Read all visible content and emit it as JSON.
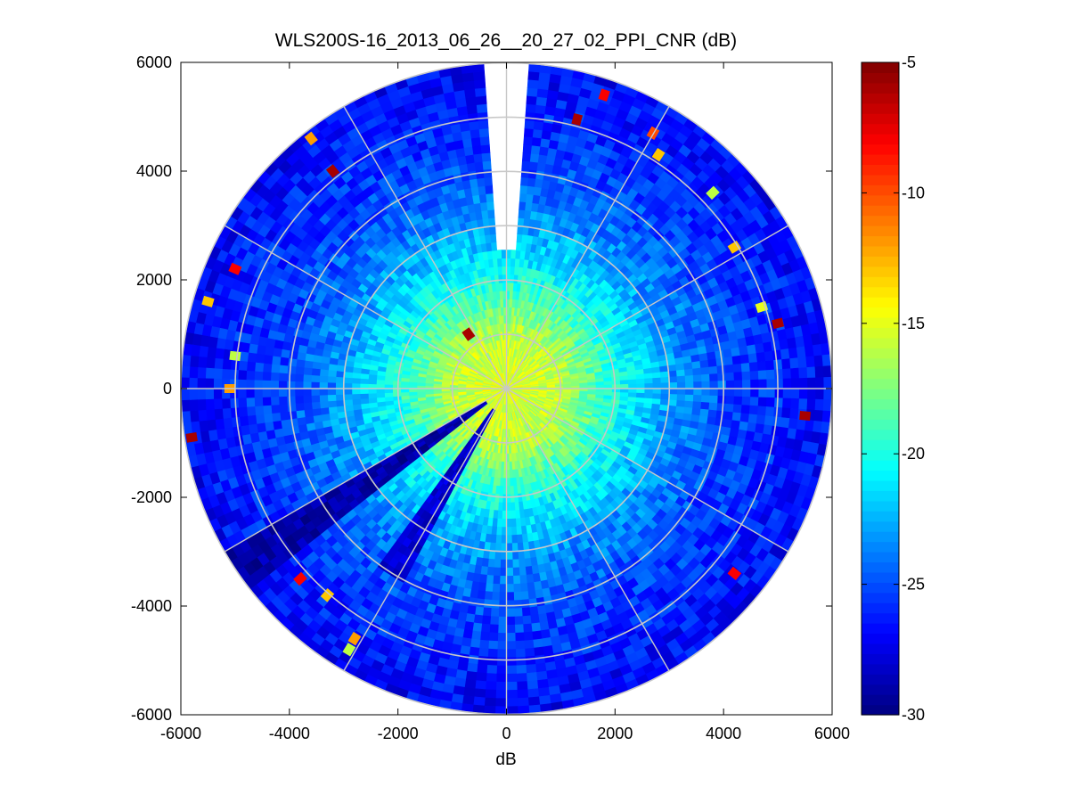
{
  "chart_data": {
    "type": "heatmap",
    "subtype": "polar-ppi",
    "title": "WLS200S-16_2013_06_26__20_27_02_PPI_CNR (dB)",
    "xlabel": "dB",
    "ylabel": "",
    "xlim": [
      -6000,
      6000
    ],
    "ylim": [
      -6000,
      6000
    ],
    "xticks": [
      "-6000",
      "-4000",
      "-2000",
      "0",
      "2000",
      "4000",
      "6000"
    ],
    "yticks": [
      "6000",
      "4000",
      "2000",
      "0",
      "-2000",
      "-4000",
      "-6000"
    ],
    "max_range": 6000,
    "range_rings": [
      1000,
      2000,
      3000,
      4000,
      5000,
      6000
    ],
    "spoke_step_deg": 30,
    "grid": true,
    "colormap": "jet",
    "colorbar": {
      "min": -30,
      "max": -5,
      "ticks": [
        "-5",
        "-10",
        "-15",
        "-20",
        "-25",
        "-30"
      ],
      "orientation": "vertical",
      "placement": "right"
    },
    "cnr_profile": {
      "range_m": [
        0,
        1000,
        1500,
        2000,
        2500,
        3000,
        3500,
        4000,
        4500,
        5000,
        5500,
        6000
      ],
      "cnr_db": [
        -15,
        -16,
        -18,
        -20,
        -21.5,
        -23,
        -24,
        -25,
        -25.5,
        -26,
        -26.5,
        -27
      ]
    },
    "blocked_sectors": [
      {
        "azimuth_deg": [
          -4,
          4
        ],
        "range_m": [
          2500,
          6000
        ],
        "note": "no data"
      },
      {
        "azimuth_deg": [
          233,
          240
        ],
        "range_m": [
          400,
          6000
        ],
        "cnr_db": -29
      },
      {
        "azimuth_deg": [
          208,
          215
        ],
        "range_m": [
          400,
          4000
        ],
        "cnr_db": -28
      }
    ],
    "hotspots": [
      {
        "x": 1800,
        "y": 5400,
        "cnr_db": -8
      },
      {
        "x": 1300,
        "y": 4950,
        "cnr_db": -6
      },
      {
        "x": 2700,
        "y": 4700,
        "cnr_db": -10
      },
      {
        "x": 2800,
        "y": 4300,
        "cnr_db": -13
      },
      {
        "x": 3800,
        "y": 3600,
        "cnr_db": -16
      },
      {
        "x": 4200,
        "y": 2600,
        "cnr_db": -13
      },
      {
        "x": 4700,
        "y": 1500,
        "cnr_db": -15
      },
      {
        "x": 5000,
        "y": 1200,
        "cnr_db": -6
      },
      {
        "x": 5500,
        "y": -500,
        "cnr_db": -6
      },
      {
        "x": -3600,
        "y": 4600,
        "cnr_db": -12
      },
      {
        "x": -3200,
        "y": 4000,
        "cnr_db": -6
      },
      {
        "x": -5000,
        "y": 2200,
        "cnr_db": -8
      },
      {
        "x": -5500,
        "y": 1600,
        "cnr_db": -13
      },
      {
        "x": -5000,
        "y": 600,
        "cnr_db": -16
      },
      {
        "x": -5100,
        "y": 0,
        "cnr_db": -12
      },
      {
        "x": -5800,
        "y": -900,
        "cnr_db": -6
      },
      {
        "x": -3800,
        "y": -3500,
        "cnr_db": -8
      },
      {
        "x": -3300,
        "y": -3800,
        "cnr_db": -13
      },
      {
        "x": -2800,
        "y": -4600,
        "cnr_db": -12
      },
      {
        "x": -2900,
        "y": -4800,
        "cnr_db": -16
      },
      {
        "x": 4200,
        "y": -3400,
        "cnr_db": -8
      },
      {
        "x": -700,
        "y": 1000,
        "cnr_db": -6
      }
    ]
  }
}
